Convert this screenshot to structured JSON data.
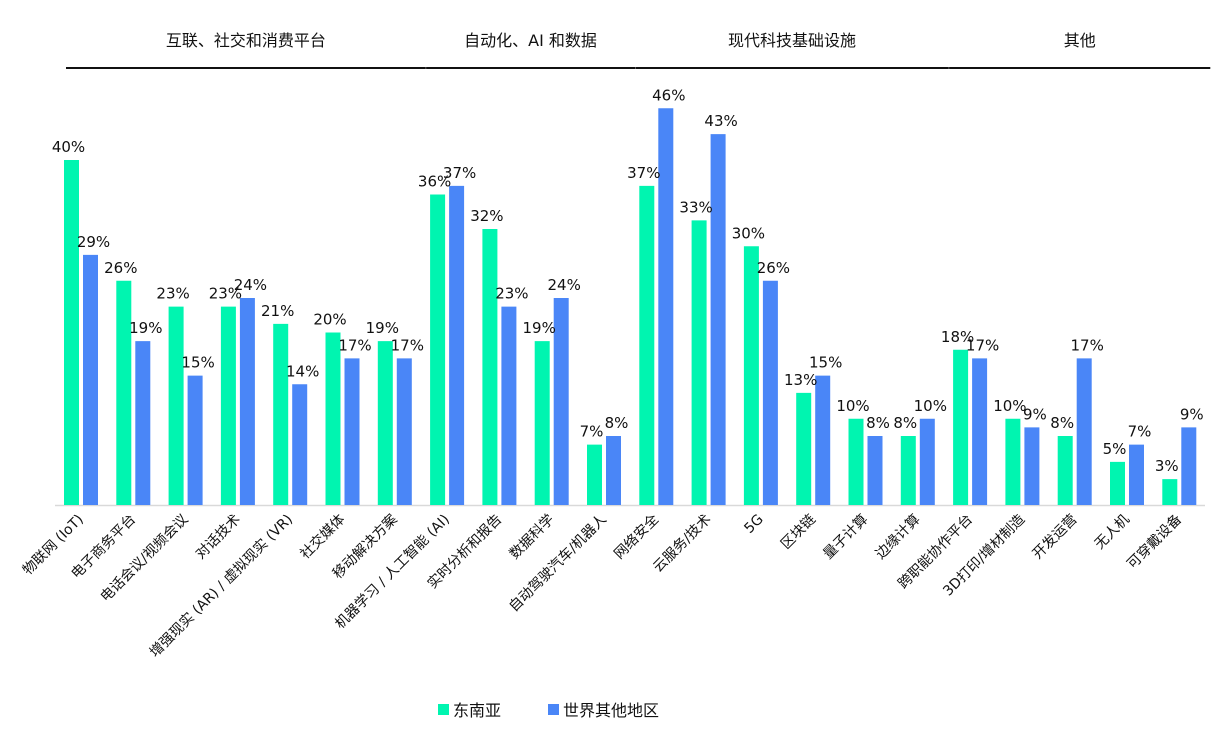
{
  "chart_data": {
    "type": "bar",
    "title": "",
    "xlabel": "",
    "ylabel": "",
    "ylim": [
      0,
      46
    ],
    "grid": false,
    "legend_position": "bottom",
    "value_suffix": "%",
    "groups": [
      {
        "label": "互联、社交和消费平台",
        "count": 7
      },
      {
        "label": "自动化、AI 和数据",
        "count": 4
      },
      {
        "label": "现代科技基础设施",
        "count": 6
      },
      {
        "label": "其他",
        "count": 5
      }
    ],
    "categories": [
      "物联网 (IoT)",
      "电子商务平台",
      "电话会议/视频会议",
      "对话技术",
      "增强现实 (AR) / 虚拟现实 (VR)",
      "社交媒体",
      "移动解决方案",
      "机器学习 / 人工智能 (AI)",
      "实时分析和报告",
      "数据科学",
      "自动驾驶汽车/机器人",
      "网络安全",
      "云服务/技术",
      "5G",
      "区块链",
      "量子计算",
      "边缘计算",
      "跨职能协作平台",
      "3D打印/增材制造",
      "开发运营",
      "无人机",
      "可穿戴设备"
    ],
    "series": [
      {
        "name": "东南亚",
        "color": "#00F5B0",
        "values": [
          40,
          26,
          23,
          23,
          21,
          20,
          19,
          36,
          32,
          19,
          7,
          37,
          33,
          30,
          13,
          10,
          8,
          18,
          10,
          8,
          5,
          3
        ]
      },
      {
        "name": "世界其他地区",
        "color": "#4A86F7",
        "values": [
          29,
          19,
          15,
          24,
          14,
          17,
          17,
          37,
          23,
          24,
          8,
          46,
          43,
          26,
          15,
          8,
          10,
          17,
          9,
          17,
          7,
          9
        ]
      }
    ]
  }
}
